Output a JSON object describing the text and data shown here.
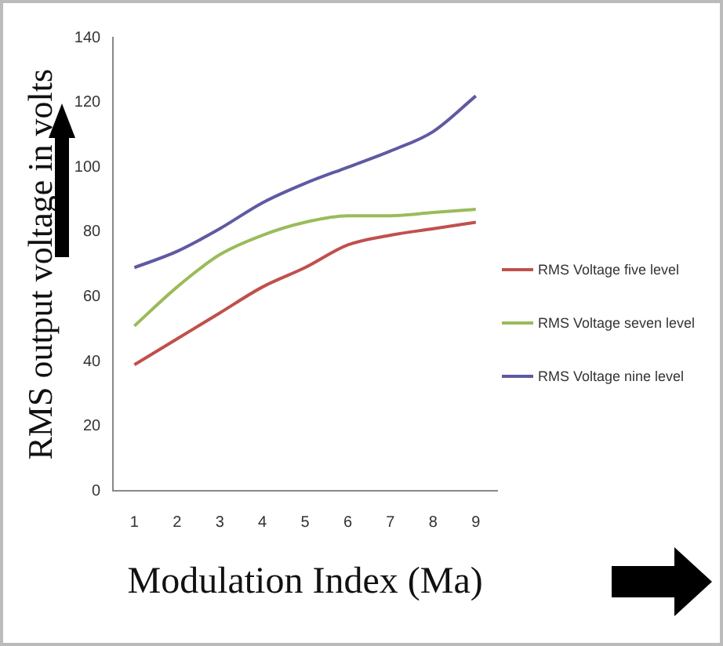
{
  "chart_data": {
    "type": "line",
    "xlabel": "Modulation Index (Ma)",
    "ylabel": "RMS output voltage in volts",
    "categories": [
      "1",
      "2",
      "3",
      "4",
      "5",
      "6",
      "7",
      "8",
      "9"
    ],
    "series": [
      {
        "name": "RMS Voltage five level",
        "color": "#c0504d",
        "values": [
          39,
          47,
          55,
          63,
          69,
          76,
          79,
          81,
          83
        ]
      },
      {
        "name": "RMS Voltage seven level",
        "color": "#9bbb59",
        "values": [
          51,
          63,
          73,
          79,
          83,
          85,
          85,
          86,
          87
        ]
      },
      {
        "name": "RMS Voltage nine level",
        "color": "#5f5aa2",
        "values": [
          69,
          74,
          81,
          89,
          95,
          100,
          105,
          111,
          122
        ]
      }
    ],
    "ylim": [
      0,
      140
    ],
    "yticks": [
      0,
      20,
      40,
      60,
      80,
      100,
      120,
      140
    ],
    "grid": false,
    "legend": "right",
    "marker": "none",
    "line_style": "solid"
  }
}
